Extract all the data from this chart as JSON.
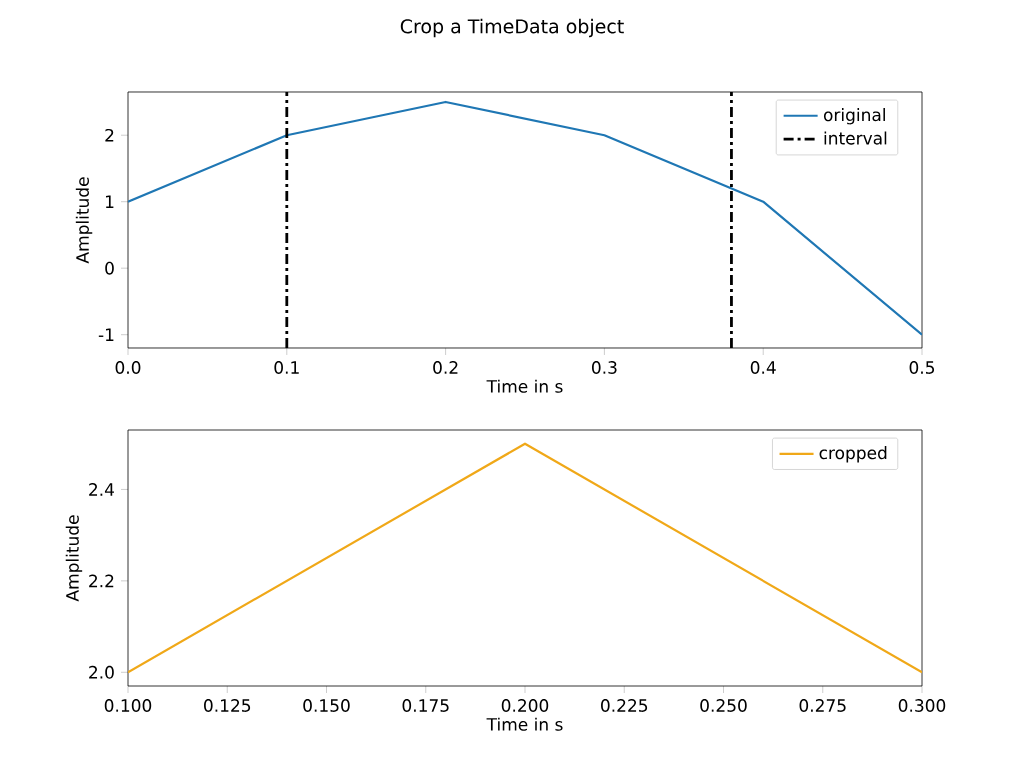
{
  "chart_data": [
    {
      "type": "line",
      "title": "Crop a TimeData object",
      "xlabel": "Time in s",
      "ylabel": "Amplitude",
      "x": [
        0,
        0.1,
        0.2,
        0.3,
        0.4,
        0.5
      ],
      "series": [
        {
          "name": "original",
          "color": "#1f77b4",
          "values": [
            1,
            2,
            2.5,
            2,
            1,
            -1
          ]
        }
      ],
      "ref_lines": [
        {
          "axis": "x",
          "value": 0.1,
          "label": "interval",
          "color": "#000000",
          "line_style": "dashdot"
        },
        {
          "axis": "x",
          "value": 0.38,
          "color": "#000000",
          "line_style": "dashdot"
        }
      ],
      "xlim": [
        0,
        0.5
      ],
      "ylim": [
        -1.2,
        2.65
      ],
      "xticks": [
        {
          "value": 0,
          "label": "0.0"
        },
        0.1,
        0.2,
        0.3,
        0.4,
        0.5
      ],
      "yticks": [
        -1,
        0,
        1,
        2
      ],
      "legend": "top right"
    },
    {
      "type": "line",
      "xlabel": "Time in s",
      "ylabel": "Amplitude",
      "x": [
        0.1,
        0.2,
        0.3
      ],
      "series": [
        {
          "name": "cropped",
          "color": "#f0a818",
          "values": [
            2,
            2.5,
            2
          ]
        }
      ],
      "xlim": [
        0.1,
        0.3
      ],
      "ylim": [
        1.97,
        2.53
      ],
      "xticks": [
        {
          "value": 0.1,
          "label": "0.100"
        },
        {
          "value": 0.125,
          "label": "0.125"
        },
        {
          "value": 0.15,
          "label": "0.150"
        },
        {
          "value": 0.175,
          "label": "0.175"
        },
        {
          "value": 0.2,
          "label": "0.200"
        },
        {
          "value": 0.225,
          "label": "0.225"
        },
        {
          "value": 0.25,
          "label": "0.250"
        },
        {
          "value": 0.275,
          "label": "0.275"
        },
        {
          "value": 0.3,
          "label": "0.300"
        }
      ],
      "yticks": [
        {
          "value": 2.0,
          "label": "2.0"
        },
        {
          "value": 2.2,
          "label": "2.2"
        },
        {
          "value": 2.4,
          "label": "2.4"
        }
      ],
      "legend": "top right"
    }
  ]
}
